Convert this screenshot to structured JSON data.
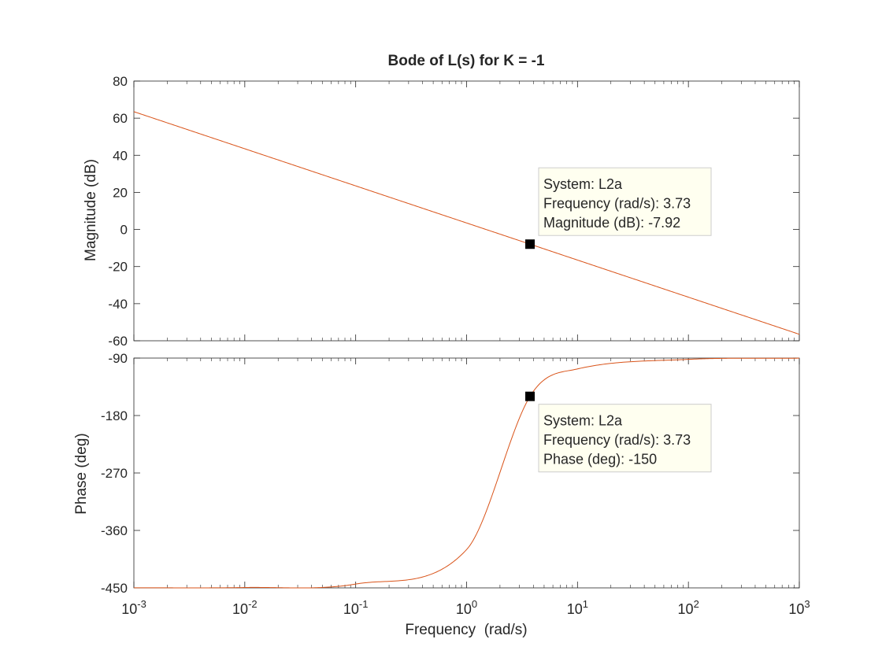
{
  "chart_data": {
    "type": "line",
    "title": "Bode of L(s) for K = -1",
    "xlabel": "Frequency  (rad/s)",
    "xscale": "log",
    "xlim": [
      0.001,
      1000
    ],
    "x_tick_exponents": [
      -3,
      -2,
      -1,
      0,
      1,
      2,
      3
    ],
    "x_tick_base": "10",
    "line_color": "#D95319",
    "grid": false,
    "magnitude": {
      "ylabel": "Magnitude (dB)",
      "ylim": [
        -60,
        80
      ],
      "yticks": [
        -60,
        -40,
        -20,
        0,
        20,
        40,
        60,
        80
      ],
      "ytick_labels": [
        "-60",
        "-40",
        "-20",
        "0",
        "20",
        "40",
        "60",
        "80"
      ],
      "series": [
        {
          "x": [
            0.001,
            0.01,
            0.1,
            1,
            3.73,
            10,
            100,
            1000
          ],
          "y": [
            63.5,
            43.5,
            23.5,
            3.5,
            -7.92,
            -16.5,
            -36.5,
            -56.5
          ]
        }
      ]
    },
    "phase": {
      "ylabel": "Phase (deg)",
      "ylim": [
        -450,
        -90
      ],
      "yticks": [
        -450,
        -360,
        -270,
        -180,
        -90
      ],
      "ytick_labels": [
        "-450",
        "-360",
        "-270",
        "-180",
        "-90"
      ],
      "series": [
        {
          "x": [
            0.001,
            0.01,
            0.1,
            1,
            3.73,
            10,
            100,
            1000
          ],
          "y": [
            -449.9,
            -449.4,
            -444,
            -390,
            -150,
            -107,
            -92,
            -90.2
          ]
        }
      ]
    },
    "datatips": [
      {
        "panel": "magnitude",
        "x": 3.73,
        "y": -7.92,
        "lines": [
          "System: L2a",
          "Frequency (rad/s): 3.73",
          "Magnitude (dB): -7.92"
        ]
      },
      {
        "panel": "phase",
        "x": 3.73,
        "y": -150,
        "lines": [
          "System: L2a",
          "Frequency (rad/s): 3.73",
          "Phase (deg): -150"
        ]
      }
    ]
  },
  "colors": {
    "axes_box": "#262626",
    "text": "#262626",
    "datatip_bg": "#FFFFF0",
    "datatip_border": "#CCCCCC",
    "marker": "#000000"
  }
}
